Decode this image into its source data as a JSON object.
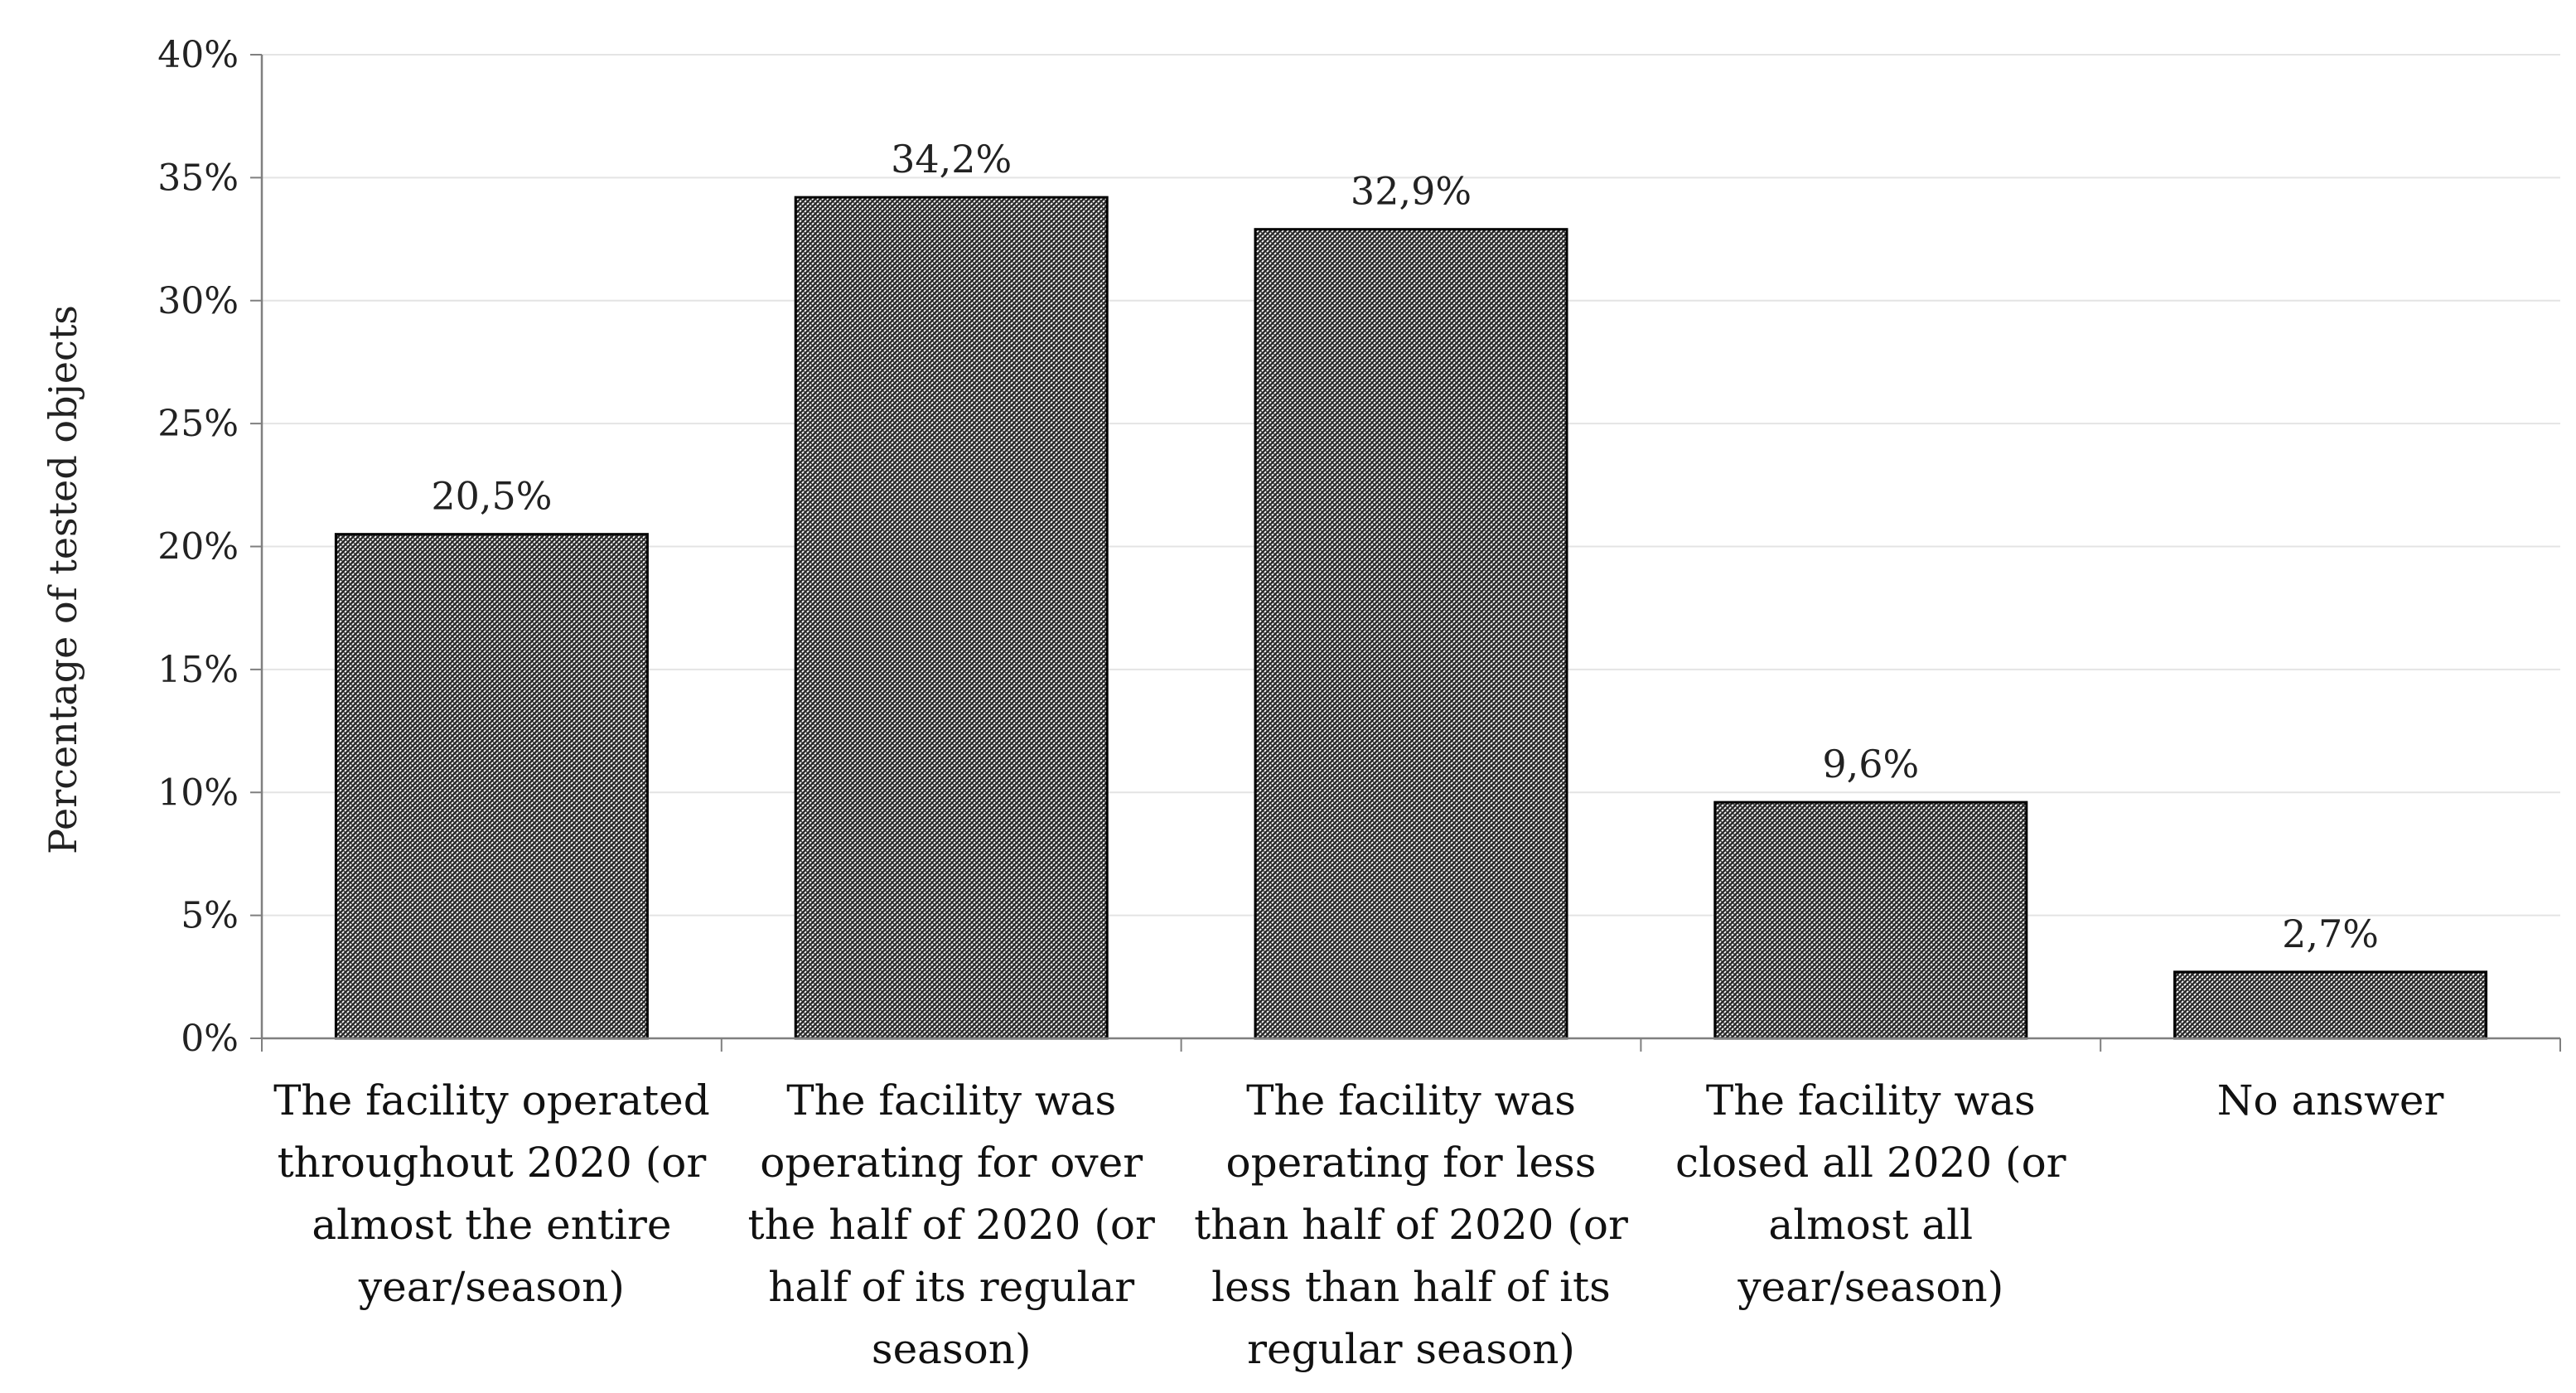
{
  "chart_data": {
    "type": "bar",
    "title": "",
    "xlabel": "",
    "ylabel": "Percentage of tested objects",
    "ylim": [
      0,
      40
    ],
    "yticks": [
      0,
      5,
      10,
      15,
      20,
      25,
      30,
      35,
      40
    ],
    "ytick_labels": [
      "0%",
      "5%",
      "10%",
      "15%",
      "20%",
      "25%",
      "30%",
      "35%",
      "40%"
    ],
    "grid": true,
    "legend": "none",
    "categories": [
      "The facility operated throughout 2020 (or almost the entire year/season)",
      "The facility was operating for over the half of 2020 (or half of its regular season)",
      "The facility was operating for less than half of 2020 (or less than half of its regular season)",
      "The facility was closed all 2020 (or almost all year/season)",
      "No answer"
    ],
    "values": [
      20.5,
      34.2,
      32.9,
      9.6,
      2.7
    ],
    "data_labels": [
      "20,5%",
      "34,2%",
      "32,9%",
      "9,6%",
      "2,7%"
    ],
    "colors": {
      "bar_fill_dark": "#2a2a2a",
      "bar_fill_light": "#ffffff",
      "bar_stroke": "#000000",
      "gridline": "#e4e4e4",
      "axis": "#7f7f7f"
    }
  }
}
